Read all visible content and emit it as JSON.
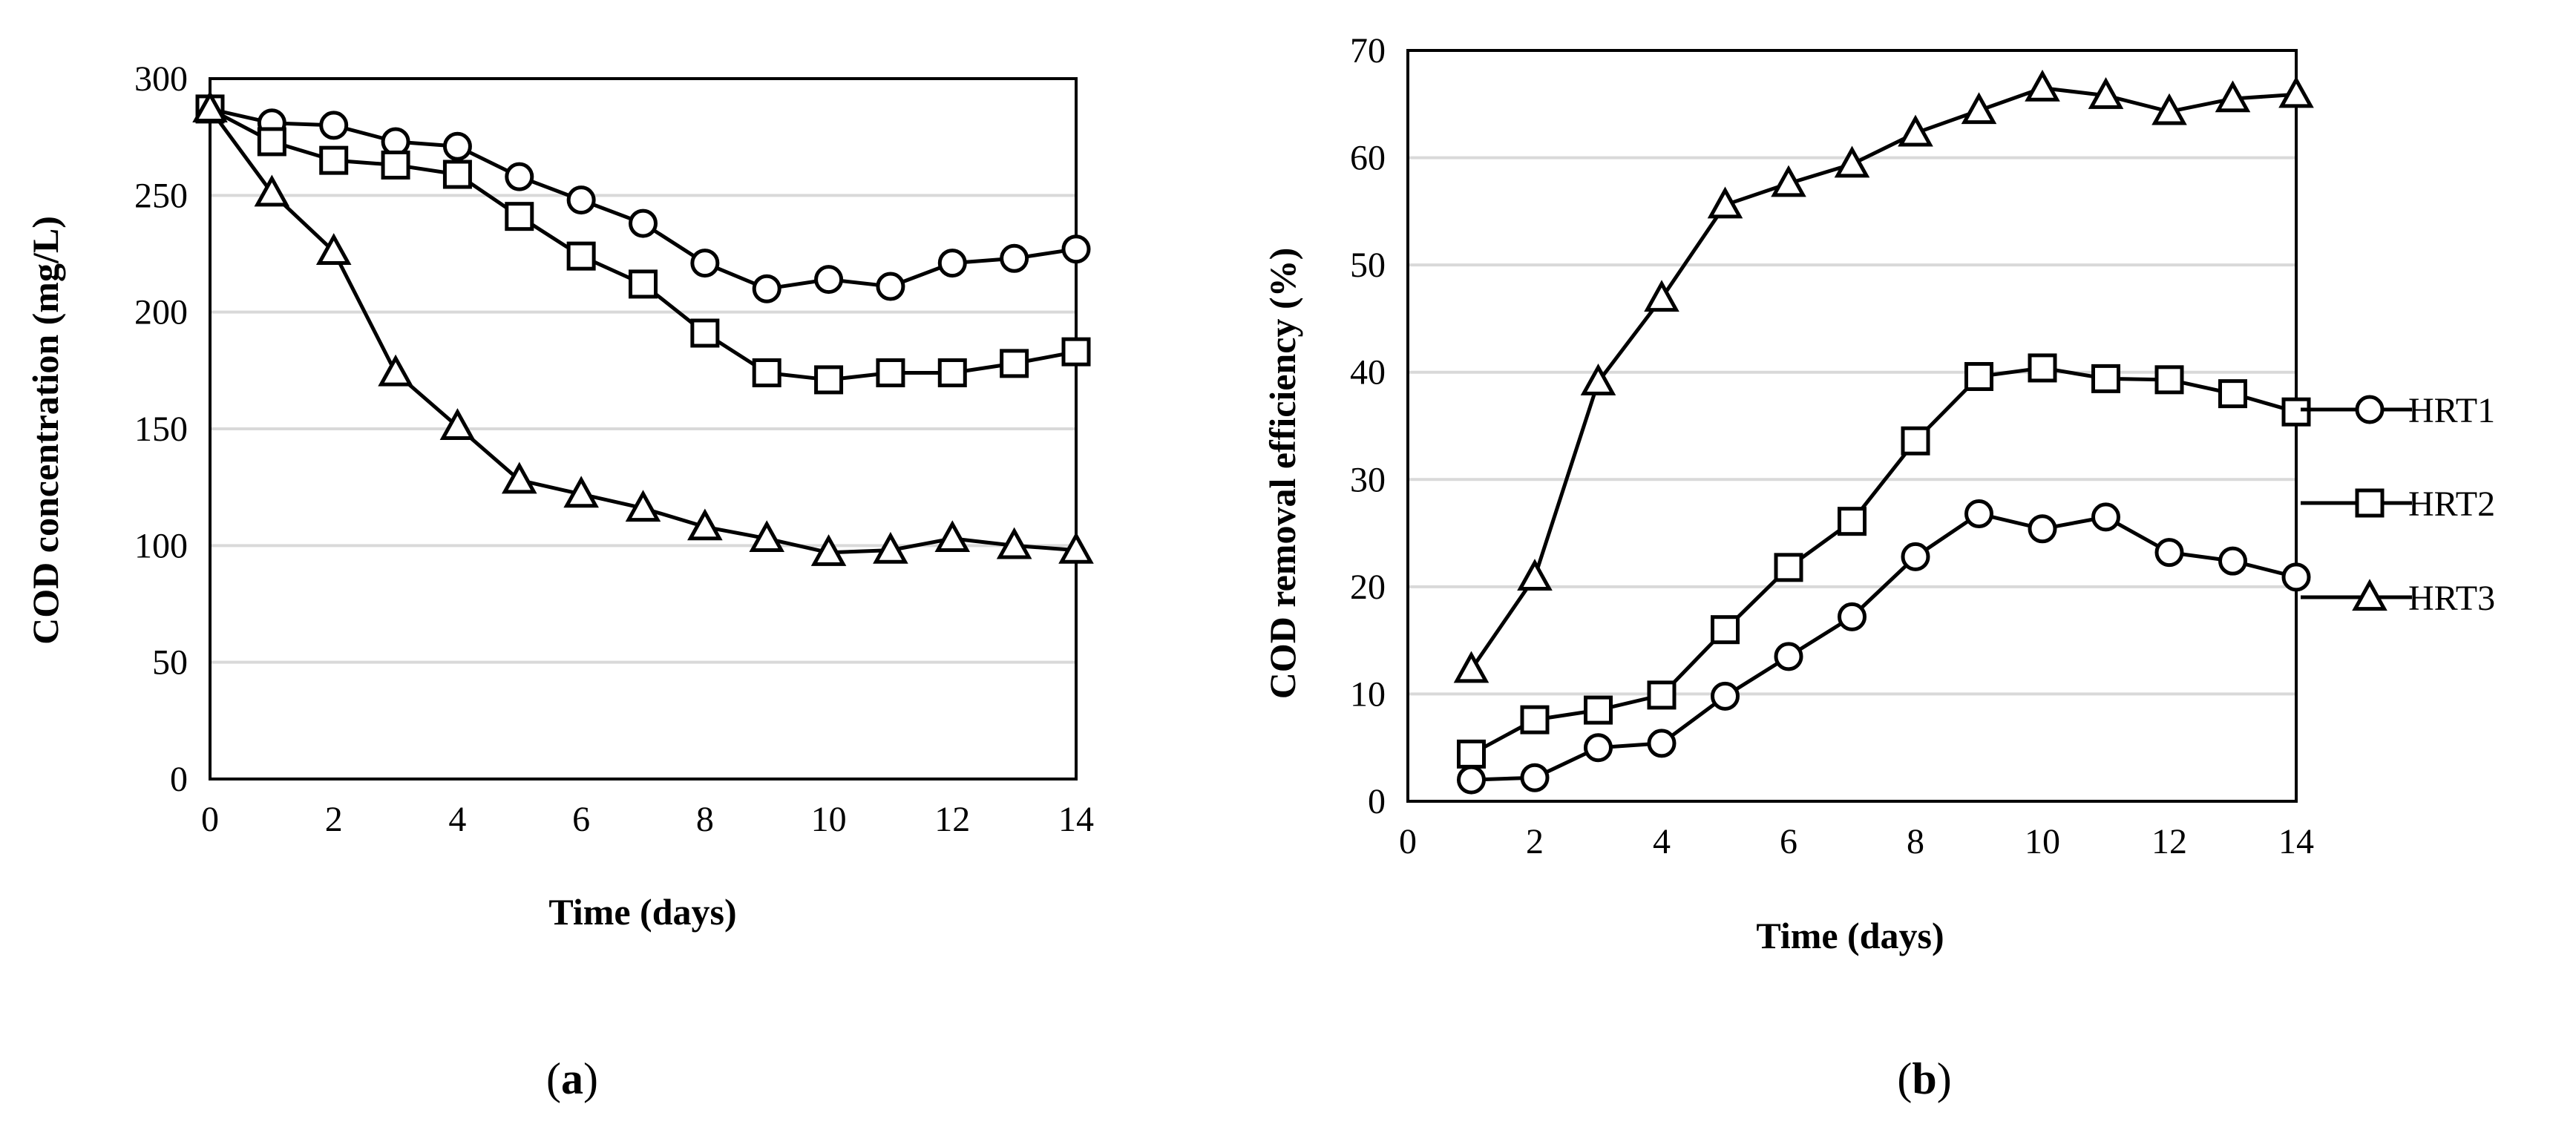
{
  "chart_data": [
    {
      "type": "line",
      "caption_letter": "a",
      "xlabel": "Time (days)",
      "ylabel": "COD concentration (mg/L)",
      "xlim": [
        0,
        14
      ],
      "ylim": [
        0,
        300
      ],
      "xticks": [
        0,
        2,
        4,
        6,
        8,
        10,
        12,
        14
      ],
      "yticks": [
        0,
        50,
        100,
        150,
        200,
        250,
        300
      ],
      "grid": "horizontal",
      "series": [
        {
          "name": "HRT1",
          "marker": "circle",
          "x": [
            0,
            1,
            2,
            3,
            4,
            5,
            6,
            7,
            8,
            9,
            10,
            11,
            12,
            13,
            14
          ],
          "values": [
            287,
            281,
            280,
            273,
            271,
            258,
            248,
            238,
            221,
            210,
            214,
            211,
            221,
            223,
            227
          ]
        },
        {
          "name": "HRT2",
          "marker": "square",
          "x": [
            0,
            1,
            2,
            3,
            4,
            5,
            6,
            7,
            8,
            9,
            10,
            11,
            12,
            13,
            14
          ],
          "values": [
            287,
            273,
            265,
            263,
            259,
            241,
            224,
            212,
            191,
            174,
            171,
            174,
            174,
            178,
            183
          ]
        },
        {
          "name": "HRT3",
          "marker": "triangle",
          "x": [
            0,
            1,
            2,
            3,
            4,
            5,
            6,
            7,
            8,
            9,
            10,
            11,
            12,
            13,
            14
          ],
          "values": [
            287,
            251,
            226,
            174,
            151,
            128,
            122,
            116,
            108,
            103,
            97,
            98,
            103,
            100,
            98
          ]
        }
      ]
    },
    {
      "type": "line",
      "caption_letter": "b",
      "xlabel": "Time (days)",
      "ylabel": "COD removal efficiency (%)",
      "xlim": [
        0,
        14
      ],
      "ylim": [
        0,
        70
      ],
      "xticks": [
        0,
        2,
        4,
        6,
        8,
        10,
        12,
        14
      ],
      "yticks": [
        0,
        10,
        20,
        30,
        40,
        50,
        60,
        70
      ],
      "grid": "horizontal",
      "legend": "right",
      "series": [
        {
          "name": "HRT1",
          "marker": "circle",
          "x": [
            1,
            2,
            3,
            4,
            5,
            6,
            7,
            8,
            9,
            10,
            11,
            12,
            13,
            14
          ],
          "values": [
            2,
            2.2,
            5,
            5.4,
            9.8,
            13.5,
            17.2,
            22.8,
            26.8,
            25.4,
            26.5,
            23.2,
            22.4,
            20.9
          ]
        },
        {
          "name": "HRT2",
          "marker": "square",
          "x": [
            1,
            2,
            3,
            4,
            5,
            6,
            7,
            8,
            9,
            10,
            11,
            12,
            13,
            14
          ],
          "values": [
            4.4,
            7.6,
            8.5,
            9.9,
            16,
            21.8,
            26.1,
            33.6,
            39.6,
            40.4,
            39.4,
            39.3,
            38,
            36.3
          ]
        },
        {
          "name": "HRT3",
          "marker": "triangle",
          "x": [
            1,
            2,
            3,
            4,
            5,
            6,
            7,
            8,
            9,
            10,
            11,
            12,
            13,
            14
          ],
          "values": [
            12.3,
            20.9,
            39.1,
            46.9,
            55.6,
            57.6,
            59.4,
            62.3,
            64.4,
            66.5,
            65.8,
            64.3,
            65.5,
            65.9
          ]
        }
      ]
    }
  ]
}
